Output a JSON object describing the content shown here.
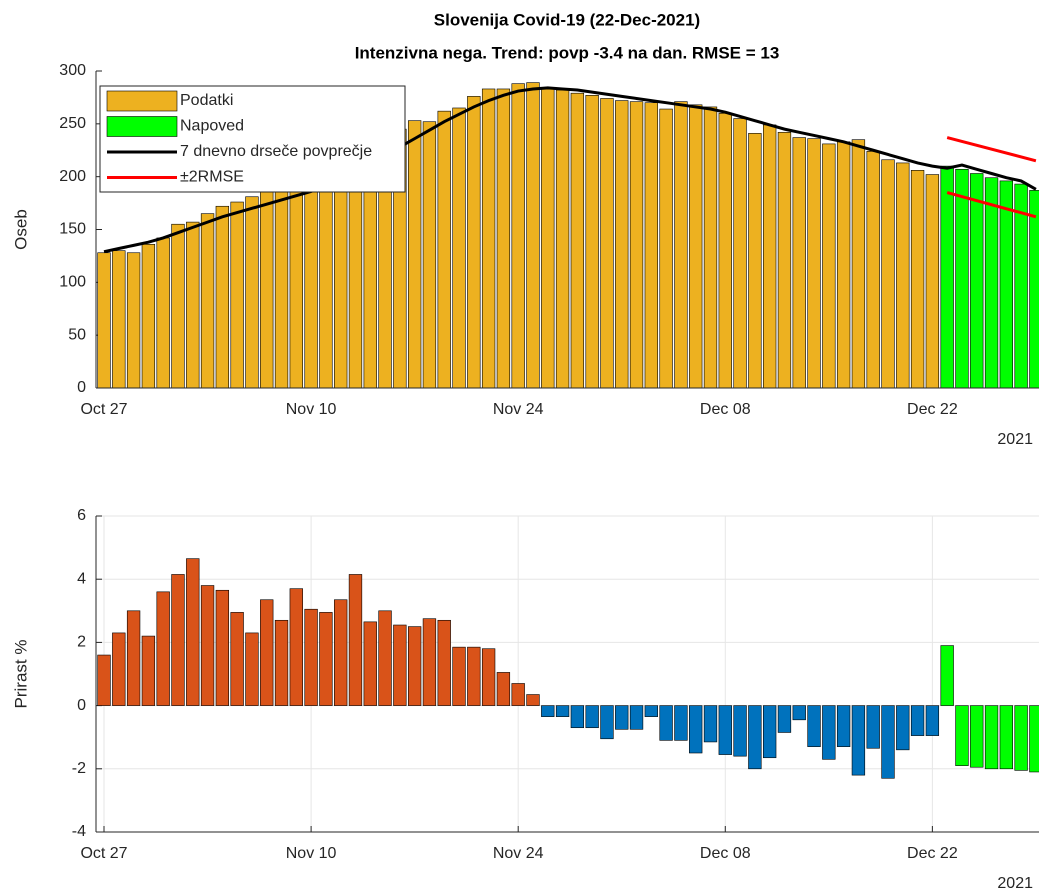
{
  "chart_data": [
    {
      "type": "bar",
      "title": "Slovenija Covid-19 (22-Dec-2021)",
      "subtitle": "Intenzivna nega. Trend: povp -3.4 na dan. RMSE = 13",
      "ylabel": "Oseb",
      "x_year_label": "2021",
      "grid": false,
      "legend": "upper-left",
      "xlim": [
        "2021-10-26T11:00",
        "2021-12-29T05:00"
      ],
      "xticks": [
        {
          "value": "2021-10-27",
          "label": "Oct 27"
        },
        {
          "value": "2021-11-10",
          "label": "Nov 10"
        },
        {
          "value": "2021-11-24",
          "label": "Nov 24"
        },
        {
          "value": "2021-12-08",
          "label": "Dec 08"
        },
        {
          "value": "2021-12-22",
          "label": "Dec 22"
        }
      ],
      "ylim": [
        0,
        300
      ],
      "yticks": [
        0,
        50,
        100,
        150,
        200,
        250,
        300
      ],
      "series": [
        {
          "name": "Podatki",
          "type": "bar",
          "color": "#edb120",
          "x": [
            "2021-10-27",
            "2021-10-28",
            "2021-10-29",
            "2021-10-30",
            "2021-10-31",
            "2021-11-01",
            "2021-11-02",
            "2021-11-03",
            "2021-11-04",
            "2021-11-05",
            "2021-11-06",
            "2021-11-07",
            "2021-11-08",
            "2021-11-09",
            "2021-11-10",
            "2021-11-11",
            "2021-11-12",
            "2021-11-13",
            "2021-11-14",
            "2021-11-15",
            "2021-11-16",
            "2021-11-17",
            "2021-11-18",
            "2021-11-19",
            "2021-11-20",
            "2021-11-21",
            "2021-11-22",
            "2021-11-23",
            "2021-11-24",
            "2021-11-25",
            "2021-11-26",
            "2021-11-27",
            "2021-11-28",
            "2021-11-29",
            "2021-11-30",
            "2021-12-01",
            "2021-12-02",
            "2021-12-03",
            "2021-12-04",
            "2021-12-05",
            "2021-12-06",
            "2021-12-07",
            "2021-12-08",
            "2021-12-09",
            "2021-12-10",
            "2021-12-11",
            "2021-12-12",
            "2021-12-13",
            "2021-12-14",
            "2021-12-15",
            "2021-12-16",
            "2021-12-17",
            "2021-12-18",
            "2021-12-19",
            "2021-12-20",
            "2021-12-21",
            "2021-12-22"
          ],
          "values": [
            128,
            130,
            128,
            136,
            142,
            155,
            157,
            165,
            172,
            176,
            181,
            186,
            190,
            195,
            200,
            210,
            215,
            222,
            230,
            238,
            245,
            253,
            252,
            262,
            265,
            276,
            283,
            283,
            288,
            289,
            283,
            282,
            279,
            277,
            274,
            272,
            271,
            270,
            264,
            271,
            268,
            266,
            260,
            255,
            241,
            249,
            242,
            237,
            236,
            231,
            233,
            235,
            224,
            216,
            213,
            206,
            202
          ]
        },
        {
          "name": "Napoved",
          "type": "bar",
          "color": "#00ff00",
          "x": [
            "2021-12-23",
            "2021-12-24",
            "2021-12-25",
            "2021-12-26",
            "2021-12-27",
            "2021-12-28",
            "2021-12-29"
          ],
          "values": [
            210,
            207,
            203,
            199,
            196,
            193,
            187
          ]
        },
        {
          "name": "7 dnevno drseče povprečje",
          "type": "line",
          "color": "#000000",
          "x": [
            "2021-10-27",
            "2021-10-28",
            "2021-10-29",
            "2021-10-30",
            "2021-10-31",
            "2021-11-01",
            "2021-11-02",
            "2021-11-03",
            "2021-11-04",
            "2021-11-05",
            "2021-11-06",
            "2021-11-07",
            "2021-11-08",
            "2021-11-09",
            "2021-11-10",
            "2021-11-11",
            "2021-11-12",
            "2021-11-13",
            "2021-11-14",
            "2021-11-15",
            "2021-11-16",
            "2021-11-17",
            "2021-11-18",
            "2021-11-19",
            "2021-11-20",
            "2021-11-21",
            "2021-11-22",
            "2021-11-23",
            "2021-11-24",
            "2021-11-25",
            "2021-11-26",
            "2021-11-27",
            "2021-11-28",
            "2021-11-29",
            "2021-11-30",
            "2021-12-01",
            "2021-12-02",
            "2021-12-03",
            "2021-12-04",
            "2021-12-05",
            "2021-12-06",
            "2021-12-07",
            "2021-12-08",
            "2021-12-09",
            "2021-12-10",
            "2021-12-11",
            "2021-12-12",
            "2021-12-13",
            "2021-12-14",
            "2021-12-15",
            "2021-12-16",
            "2021-12-17",
            "2021-12-18",
            "2021-12-19",
            "2021-12-20",
            "2021-12-21",
            "2021-12-22",
            "2021-12-23",
            "2021-12-24",
            "2021-12-25",
            "2021-12-26",
            "2021-12-27",
            "2021-12-28",
            "2021-12-29"
          ],
          "values": [
            129,
            132,
            135,
            138,
            142,
            147,
            152,
            157,
            162,
            166,
            170,
            174,
            178,
            182,
            186,
            191,
            197,
            204,
            211,
            219,
            228,
            236,
            244,
            252,
            259,
            266,
            272,
            277,
            281,
            283,
            284,
            283,
            282,
            280,
            278,
            276,
            274,
            272,
            270,
            268,
            266,
            264,
            261,
            257,
            253,
            249,
            245,
            242,
            239,
            236,
            233,
            229,
            225,
            221,
            217,
            213,
            210,
            208,
            211,
            207,
            203,
            199,
            196,
            188
          ]
        },
        {
          "name": "±2RMSE",
          "type": "band",
          "color": "#ff0000",
          "x": [
            "2021-12-23",
            "2021-12-29"
          ],
          "upper": [
            237,
            215
          ],
          "lower": [
            185,
            162
          ]
        }
      ]
    },
    {
      "type": "bar",
      "ylabel": "Prirast %",
      "x_year_label": "2021",
      "grid": true,
      "xlim": [
        "2021-10-26T11:00",
        "2021-12-29T05:00"
      ],
      "xticks": [
        {
          "value": "2021-10-27",
          "label": "Oct 27"
        },
        {
          "value": "2021-11-10",
          "label": "Nov 10"
        },
        {
          "value": "2021-11-24",
          "label": "Nov 24"
        },
        {
          "value": "2021-12-08",
          "label": "Dec 08"
        },
        {
          "value": "2021-12-22",
          "label": "Dec 22"
        }
      ],
      "ylim": [
        -4,
        6
      ],
      "yticks": [
        -4,
        -2,
        0,
        2,
        4,
        6
      ],
      "series": [
        {
          "type": "bar",
          "color": "#d95319",
          "x": [
            "2021-10-27",
            "2021-10-28",
            "2021-10-29",
            "2021-10-30",
            "2021-10-31",
            "2021-11-01",
            "2021-11-02",
            "2021-11-03",
            "2021-11-04",
            "2021-11-05",
            "2021-11-06",
            "2021-11-07",
            "2021-11-08",
            "2021-11-09",
            "2021-11-10",
            "2021-11-11",
            "2021-11-12",
            "2021-11-13",
            "2021-11-14",
            "2021-11-15",
            "2021-11-16",
            "2021-11-17",
            "2021-11-18",
            "2021-11-19",
            "2021-11-20",
            "2021-11-21",
            "2021-11-22",
            "2021-11-23",
            "2021-11-24",
            "2021-11-25"
          ],
          "values": [
            1.6,
            2.3,
            3.0,
            2.2,
            3.6,
            4.15,
            4.65,
            3.8,
            3.65,
            2.95,
            2.3,
            3.35,
            2.7,
            3.7,
            3.05,
            2.95,
            3.35,
            4.15,
            2.65,
            3.0,
            2.55,
            2.5,
            2.75,
            2.7,
            1.85,
            1.85,
            1.8,
            1.05,
            0.7,
            0.35
          ]
        },
        {
          "type": "bar",
          "color": "#0072bd",
          "x": [
            "2021-11-26",
            "2021-11-27",
            "2021-11-28",
            "2021-11-29",
            "2021-11-30",
            "2021-12-01",
            "2021-12-02",
            "2021-12-03",
            "2021-12-04",
            "2021-12-05",
            "2021-12-06",
            "2021-12-07",
            "2021-12-08",
            "2021-12-09",
            "2021-12-10",
            "2021-12-11",
            "2021-12-12",
            "2021-12-13",
            "2021-12-14",
            "2021-12-15",
            "2021-12-16",
            "2021-12-17",
            "2021-12-18",
            "2021-12-19",
            "2021-12-20",
            "2021-12-21",
            "2021-12-22"
          ],
          "values": [
            -0.35,
            -0.35,
            -0.7,
            -0.7,
            -1.05,
            -0.75,
            -0.75,
            -0.35,
            -1.1,
            -1.1,
            -1.5,
            -1.15,
            -1.55,
            -1.6,
            -2.0,
            -1.65,
            -0.85,
            -0.45,
            -1.3,
            -1.7,
            -1.3,
            -2.2,
            -1.35,
            -2.3,
            -1.4,
            -0.95,
            -0.95
          ]
        },
        {
          "type": "bar",
          "color": "#00ff00",
          "x": [
            "2021-12-23",
            "2021-12-24",
            "2021-12-25",
            "2021-12-26",
            "2021-12-27",
            "2021-12-28",
            "2021-12-29"
          ],
          "values": [
            1.9,
            -1.9,
            -1.95,
            -2.0,
            -2.0,
            -2.05,
            -2.1
          ]
        }
      ]
    }
  ]
}
